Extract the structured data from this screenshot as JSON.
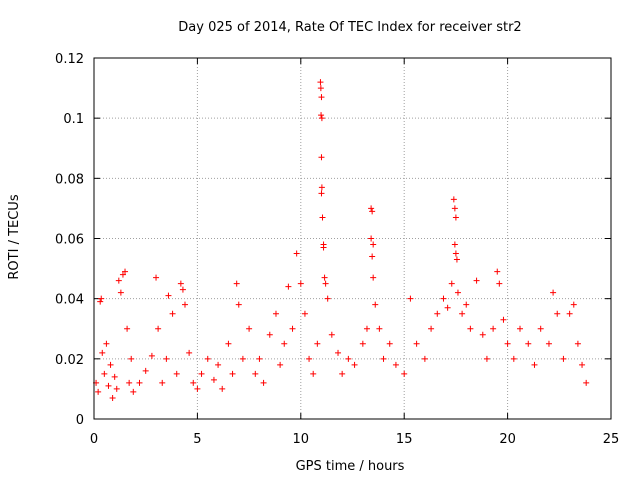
{
  "chart_data": {
    "type": "scatter",
    "title": "Day 025 of 2014, Rate Of TEC Index for receiver str2",
    "xlabel": "GPS time / hours",
    "ylabel": "ROTI / TECUs",
    "xlim": [
      0,
      25
    ],
    "ylim": [
      0,
      0.12
    ],
    "x_ticks": [
      0,
      5,
      10,
      15,
      20,
      25
    ],
    "x_tick_labels": [
      "0",
      "5",
      "10",
      "15",
      "20",
      "25"
    ],
    "y_ticks": [
      0,
      0.02,
      0.04,
      0.06,
      0.08,
      0.1,
      0.12
    ],
    "y_tick_labels": [
      "0",
      "0.02",
      "0.04",
      "0.06",
      "0.08",
      "0.1",
      "0.12"
    ],
    "grid": true,
    "marker": "+",
    "color": "#ff0000",
    "series": [
      {
        "name": "ROTI",
        "points": [
          [
            0.1,
            0.012
          ],
          [
            0.2,
            0.009
          ],
          [
            0.3,
            0.039
          ],
          [
            0.35,
            0.04
          ],
          [
            0.4,
            0.022
          ],
          [
            0.5,
            0.015
          ],
          [
            0.6,
            0.025
          ],
          [
            0.7,
            0.011
          ],
          [
            0.8,
            0.018
          ],
          [
            0.9,
            0.007
          ],
          [
            1.0,
            0.014
          ],
          [
            1.1,
            0.01
          ],
          [
            1.2,
            0.046
          ],
          [
            1.3,
            0.042
          ],
          [
            1.4,
            0.048
          ],
          [
            1.5,
            0.049
          ],
          [
            1.6,
            0.03
          ],
          [
            1.7,
            0.012
          ],
          [
            1.8,
            0.02
          ],
          [
            1.9,
            0.009
          ],
          [
            2.2,
            0.012
          ],
          [
            2.5,
            0.016
          ],
          [
            2.8,
            0.021
          ],
          [
            3.0,
            0.047
          ],
          [
            3.1,
            0.03
          ],
          [
            3.3,
            0.012
          ],
          [
            3.5,
            0.02
          ],
          [
            3.6,
            0.041
          ],
          [
            3.8,
            0.035
          ],
          [
            4.0,
            0.015
          ],
          [
            4.2,
            0.045
          ],
          [
            4.3,
            0.043
          ],
          [
            4.4,
            0.038
          ],
          [
            4.6,
            0.022
          ],
          [
            4.8,
            0.012
          ],
          [
            5.0,
            0.01
          ],
          [
            5.2,
            0.015
          ],
          [
            5.5,
            0.02
          ],
          [
            5.8,
            0.013
          ],
          [
            6.0,
            0.018
          ],
          [
            6.2,
            0.01
          ],
          [
            6.5,
            0.025
          ],
          [
            6.7,
            0.015
          ],
          [
            6.9,
            0.045
          ],
          [
            7.0,
            0.038
          ],
          [
            7.2,
            0.02
          ],
          [
            7.5,
            0.03
          ],
          [
            7.8,
            0.015
          ],
          [
            8.0,
            0.02
          ],
          [
            8.2,
            0.012
          ],
          [
            8.5,
            0.028
          ],
          [
            8.8,
            0.035
          ],
          [
            9.0,
            0.018
          ],
          [
            9.2,
            0.025
          ],
          [
            9.4,
            0.044
          ],
          [
            9.6,
            0.03
          ],
          [
            9.8,
            0.055
          ],
          [
            10.0,
            0.045
          ],
          [
            10.2,
            0.035
          ],
          [
            10.4,
            0.02
          ],
          [
            10.6,
            0.015
          ],
          [
            10.8,
            0.025
          ],
          [
            10.95,
            0.112
          ],
          [
            10.97,
            0.11
          ],
          [
            11.0,
            0.107
          ],
          [
            10.98,
            0.101
          ],
          [
            11.02,
            0.1
          ],
          [
            11.0,
            0.087
          ],
          [
            11.02,
            0.077
          ],
          [
            11.0,
            0.075
          ],
          [
            11.05,
            0.067
          ],
          [
            11.1,
            0.058
          ],
          [
            11.1,
            0.057
          ],
          [
            11.15,
            0.047
          ],
          [
            11.2,
            0.045
          ],
          [
            11.3,
            0.04
          ],
          [
            11.5,
            0.028
          ],
          [
            11.8,
            0.022
          ],
          [
            12.0,
            0.015
          ],
          [
            12.3,
            0.02
          ],
          [
            12.6,
            0.018
          ],
          [
            13.0,
            0.025
          ],
          [
            13.2,
            0.03
          ],
          [
            13.4,
            0.07
          ],
          [
            13.45,
            0.069
          ],
          [
            13.4,
            0.06
          ],
          [
            13.5,
            0.058
          ],
          [
            13.45,
            0.054
          ],
          [
            13.5,
            0.047
          ],
          [
            13.6,
            0.038
          ],
          [
            13.8,
            0.03
          ],
          [
            14.0,
            0.02
          ],
          [
            14.3,
            0.025
          ],
          [
            14.6,
            0.018
          ],
          [
            15.0,
            0.015
          ],
          [
            15.3,
            0.04
          ],
          [
            15.6,
            0.025
          ],
          [
            16.0,
            0.02
          ],
          [
            16.3,
            0.03
          ],
          [
            16.6,
            0.035
          ],
          [
            16.9,
            0.04
          ],
          [
            17.1,
            0.037
          ],
          [
            17.3,
            0.045
          ],
          [
            17.4,
            0.073
          ],
          [
            17.45,
            0.07
          ],
          [
            17.5,
            0.067
          ],
          [
            17.45,
            0.058
          ],
          [
            17.5,
            0.055
          ],
          [
            17.55,
            0.053
          ],
          [
            17.6,
            0.042
          ],
          [
            17.8,
            0.035
          ],
          [
            18.0,
            0.038
          ],
          [
            18.2,
            0.03
          ],
          [
            18.5,
            0.046
          ],
          [
            18.8,
            0.028
          ],
          [
            19.0,
            0.02
          ],
          [
            19.3,
            0.03
          ],
          [
            19.5,
            0.049
          ],
          [
            19.6,
            0.045
          ],
          [
            19.8,
            0.033
          ],
          [
            20.0,
            0.025
          ],
          [
            20.3,
            0.02
          ],
          [
            20.6,
            0.03
          ],
          [
            21.0,
            0.025
          ],
          [
            21.3,
            0.018
          ],
          [
            21.6,
            0.03
          ],
          [
            22.0,
            0.025
          ],
          [
            22.2,
            0.042
          ],
          [
            22.4,
            0.035
          ],
          [
            22.7,
            0.02
          ],
          [
            23.0,
            0.035
          ],
          [
            23.2,
            0.038
          ],
          [
            23.4,
            0.025
          ],
          [
            23.6,
            0.018
          ],
          [
            23.8,
            0.012
          ]
        ]
      }
    ]
  }
}
